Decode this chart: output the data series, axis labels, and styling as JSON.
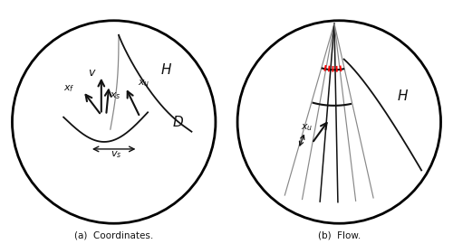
{
  "fig_width": 5.0,
  "fig_height": 2.7,
  "dpi": 100,
  "background": "#ffffff",
  "circle_color": "#000000",
  "gray_color": "#888888",
  "dark_color": "#111111",
  "red_color": "#ff0000",
  "caption_a": "(a)  Coordinates.",
  "caption_b": "(b)  Flow."
}
